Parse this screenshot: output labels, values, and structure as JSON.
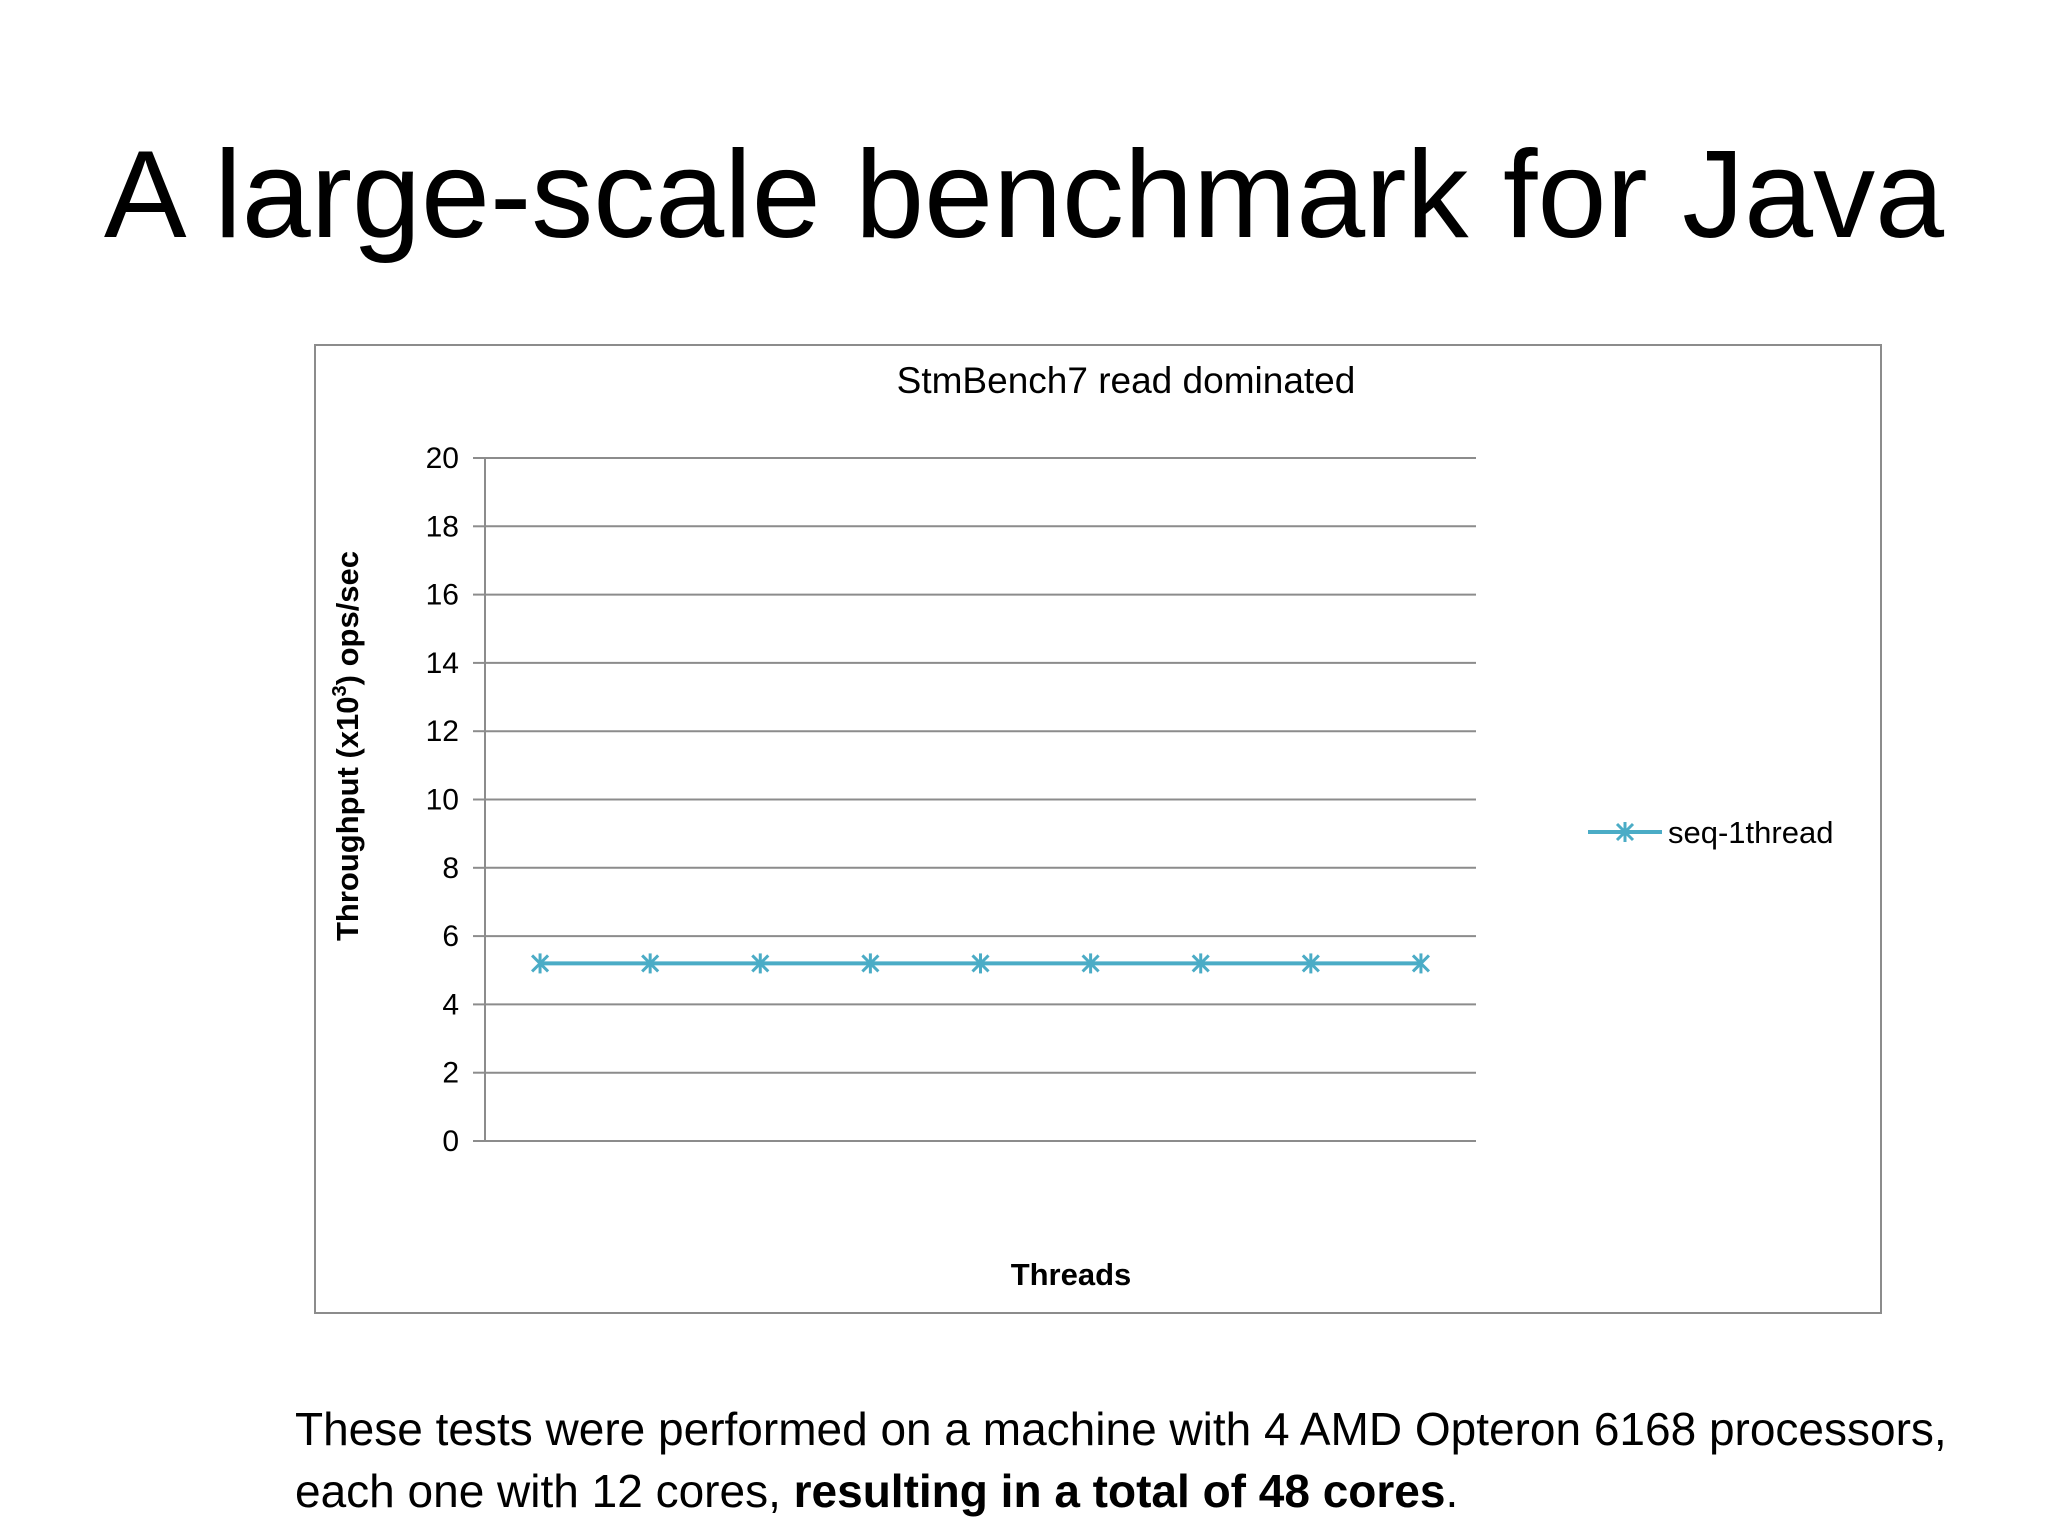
{
  "slide": {
    "title": "A large-scale benchmark for Java",
    "footnote_part1": "These tests were performed on a machine with 4 AMD Opteron 6168 processors, each one with 12 cores, ",
    "footnote_bold": "resulting in a total of 48 cores",
    "footnote_end": "."
  },
  "chart_data": {
    "type": "line",
    "title": "StmBench7 read dominated",
    "xlabel": "Threads",
    "ylabel_main": "Throughput (x10",
    "ylabel_sup": "3",
    "ylabel_end": ") ops/sec",
    "ylim": [
      0,
      20
    ],
    "yticks": [
      0,
      2,
      4,
      6,
      8,
      10,
      12,
      14,
      16,
      18,
      20
    ],
    "grid": true,
    "legend_position": "right",
    "series": [
      {
        "name": "seq-1thread",
        "color": "#4bacc6",
        "marker": "asterisk",
        "values": [
          5.2,
          5.2,
          5.2,
          5.2,
          5.2,
          5.2,
          5.2,
          5.2,
          5.2
        ]
      }
    ]
  }
}
